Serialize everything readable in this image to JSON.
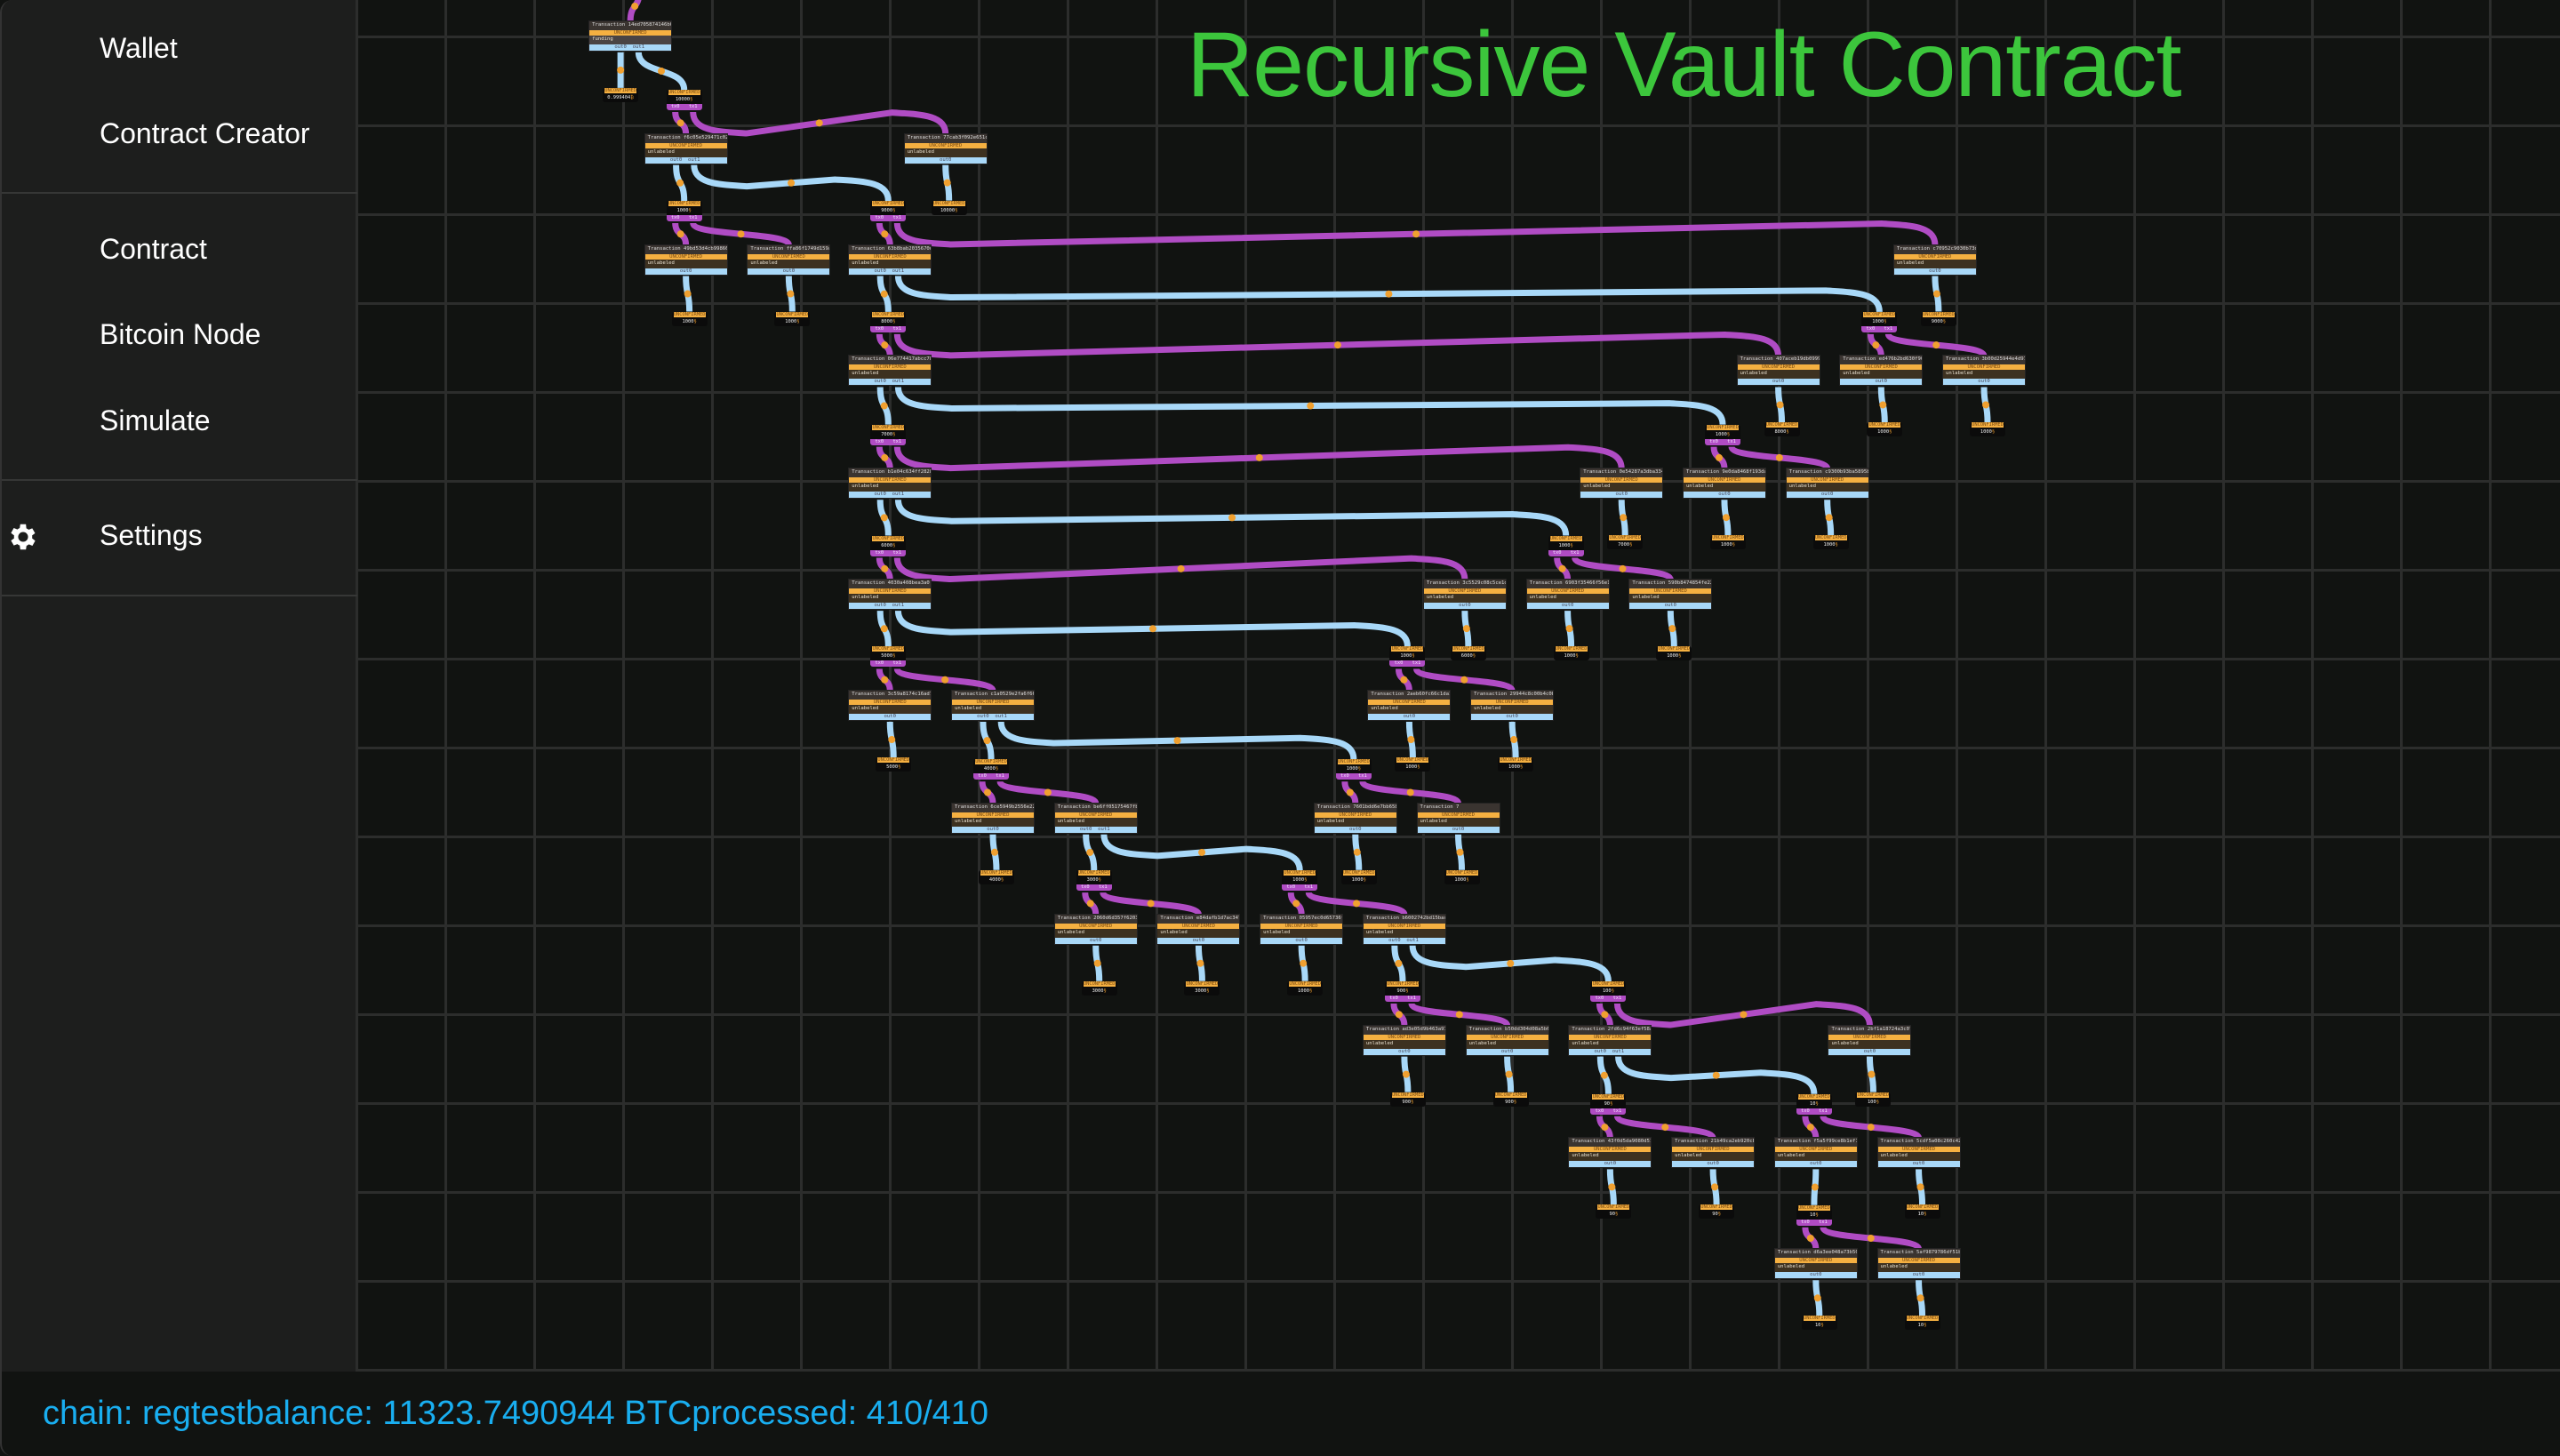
{
  "sidebar": {
    "items": [
      {
        "label": "Wallet"
      },
      {
        "label": "Contract Creator"
      },
      {
        "label": "Contract"
      },
      {
        "label": "Bitcoin Node"
      },
      {
        "label": "Simulate"
      },
      {
        "label": "Settings",
        "icon": "gear-icon"
      }
    ]
  },
  "canvas": {
    "title": "Recursive Vault Contract",
    "title_color": "#3cc63c",
    "tx_prefix": "Transaction",
    "status_text": "UNCONFIRMED",
    "colors": {
      "output_edge": "#a8d8f8",
      "spend_edge": "#b04cc4",
      "status": "#f5b041",
      "coin_marker": "#f0a030"
    },
    "transactions": [
      {
        "id": "14ed705874146b04",
        "label": "funding",
        "outputs": [
          {
            "name": "out0",
            "amount": "0.999404",
            "unit": "₿",
            "spenders": []
          },
          {
            "name": "out1",
            "amount": "10000",
            "unit": "§",
            "spenders": [
              1,
              2
            ]
          }
        ]
      },
      {
        "id": "f6c05e529471c029",
        "label": "unlabeled",
        "outputs": [
          {
            "name": "out0",
            "amount": "1000",
            "unit": "§",
            "spenders": [
              3,
              4
            ]
          },
          {
            "name": "out1",
            "amount": "9000",
            "unit": "§",
            "spenders": [
              5,
              6
            ]
          }
        ]
      },
      {
        "id": "77cab3f092e651cc",
        "label": "unlabeled",
        "outputs": [
          {
            "name": "out0",
            "amount": "10000",
            "unit": "§",
            "spenders": []
          }
        ]
      },
      {
        "id": "49bd53d4cb99866f",
        "label": "unlabeled",
        "outputs": [
          {
            "name": "out0",
            "amount": "1000",
            "unit": "§",
            "spenders": []
          }
        ]
      },
      {
        "id": "ffa86f1749d159aa",
        "label": "unlabeled",
        "outputs": [
          {
            "name": "out0",
            "amount": "1000",
            "unit": "§",
            "spenders": []
          }
        ]
      },
      {
        "id": "63b8bab2035670d7",
        "label": "unlabeled",
        "outputs": [
          {
            "name": "out0",
            "amount": "8000",
            "unit": "§",
            "spenders": [
              7,
              8
            ]
          },
          {
            "name": "out1",
            "amount": "1000",
            "unit": "§",
            "spenders": [
              9,
              10
            ]
          }
        ]
      },
      {
        "id": "c70952c9030b73d5",
        "label": "unlabeled",
        "outputs": [
          {
            "name": "out0",
            "amount": "9000",
            "unit": "§",
            "spenders": []
          }
        ]
      },
      {
        "id": "06e774417abcc78b",
        "label": "unlabeled",
        "outputs": [
          {
            "name": "out0",
            "amount": "7000",
            "unit": "§",
            "spenders": [
              11,
              12
            ]
          },
          {
            "name": "out1",
            "amount": "1000",
            "unit": "§",
            "spenders": [
              13,
              14
            ]
          }
        ]
      },
      {
        "id": "407aceb19db09995",
        "label": "unlabeled",
        "outputs": [
          {
            "name": "out0",
            "amount": "8000",
            "unit": "§",
            "spenders": []
          }
        ]
      },
      {
        "id": "ed476b2bd630f904",
        "label": "unlabeled",
        "outputs": [
          {
            "name": "out0",
            "amount": "1000",
            "unit": "§",
            "spenders": []
          }
        ]
      },
      {
        "id": "3b00d25944e4d977",
        "label": "unlabeled",
        "outputs": [
          {
            "name": "out0",
            "amount": "1000",
            "unit": "§",
            "spenders": []
          }
        ]
      },
      {
        "id": "b1e04c634ff28287",
        "label": "unlabeled",
        "outputs": [
          {
            "name": "out0",
            "amount": "6000",
            "unit": "§",
            "spenders": [
              15,
              16
            ]
          },
          {
            "name": "out1",
            "amount": "1000",
            "unit": "§",
            "spenders": [
              17,
              18
            ]
          }
        ]
      },
      {
        "id": "0e54287a3dba3347",
        "label": "unlabeled",
        "outputs": [
          {
            "name": "out0",
            "amount": "7000",
            "unit": "§",
            "spenders": []
          }
        ]
      },
      {
        "id": "9e0da8468f193da9",
        "label": "unlabeled",
        "outputs": [
          {
            "name": "out0",
            "amount": "1000",
            "unit": "§",
            "spenders": []
          }
        ]
      },
      {
        "id": "c9300b93ba5895b7",
        "label": "unlabeled",
        "outputs": [
          {
            "name": "out0",
            "amount": "1000",
            "unit": "§",
            "spenders": []
          }
        ]
      },
      {
        "id": "4030a408bea3a0",
        "label": "unlabeled",
        "outputs": [
          {
            "name": "out0",
            "amount": "5000",
            "unit": "§",
            "spenders": [
              19,
              20
            ]
          },
          {
            "name": "out1",
            "amount": "1000",
            "unit": "§",
            "spenders": [
              21,
              22
            ]
          }
        ]
      },
      {
        "id": "3c5529c08c5ce1d8",
        "label": "unlabeled",
        "outputs": [
          {
            "name": "out0",
            "amount": "6000",
            "unit": "§",
            "spenders": []
          }
        ]
      },
      {
        "id": "6903f35466f56e1c",
        "label": "unlabeled",
        "outputs": [
          {
            "name": "out0",
            "amount": "1000",
            "unit": "§",
            "spenders": []
          }
        ]
      },
      {
        "id": "590b8474854fe22b",
        "label": "unlabeled",
        "outputs": [
          {
            "name": "out0",
            "amount": "1000",
            "unit": "§",
            "spenders": []
          }
        ]
      },
      {
        "id": "3c59a8174c16ad71",
        "label": "unlabeled",
        "outputs": [
          {
            "name": "out0",
            "amount": "5000",
            "unit": "§",
            "spenders": []
          }
        ]
      },
      {
        "id": "c1a0529e2fa6f66d",
        "label": "unlabeled",
        "outputs": [
          {
            "name": "out0",
            "amount": "4000",
            "unit": "§",
            "spenders": [
              23,
              24
            ]
          },
          {
            "name": "out1",
            "amount": "1000",
            "unit": "§",
            "spenders": [
              25,
              26
            ]
          }
        ]
      },
      {
        "id": "2aeb60fc66c1da18",
        "label": "unlabeled",
        "outputs": [
          {
            "name": "out0",
            "amount": "1000",
            "unit": "§",
            "spenders": []
          }
        ]
      },
      {
        "id": "29944c8c00b4c0b7",
        "label": "unlabeled",
        "outputs": [
          {
            "name": "out0",
            "amount": "1000",
            "unit": "§",
            "spenders": []
          }
        ]
      },
      {
        "id": "6ce5949b2556e220",
        "label": "unlabeled",
        "outputs": [
          {
            "name": "out0",
            "amount": "4000",
            "unit": "§",
            "spenders": []
          }
        ]
      },
      {
        "id": "be6ff05175467fb0",
        "label": "unlabeled",
        "outputs": [
          {
            "name": "out0",
            "amount": "3000",
            "unit": "§",
            "spenders": [
              27,
              28
            ]
          },
          {
            "name": "out1",
            "amount": "1000",
            "unit": "§",
            "spenders": [
              29,
              30
            ]
          }
        ]
      },
      {
        "id": "7601bdd6e7bb6589",
        "label": "unlabeled",
        "outputs": [
          {
            "name": "out0",
            "amount": "1000",
            "unit": "§",
            "spenders": []
          }
        ]
      },
      {
        "id": "7",
        "label": "unlabeled",
        "outputs": [
          {
            "name": "out0",
            "amount": "1000",
            "unit": "§",
            "spenders": []
          }
        ]
      },
      {
        "id": "2060d6d357f62030",
        "label": "unlabeled",
        "outputs": [
          {
            "name": "out0",
            "amount": "3000",
            "unit": "§",
            "spenders": []
          }
        ]
      },
      {
        "id": "e84dafb1d7ac3471",
        "label": "unlabeled",
        "outputs": [
          {
            "name": "out0",
            "amount": "3000",
            "unit": "§",
            "spenders": []
          }
        ]
      },
      {
        "id": "05957ec0d65736f3",
        "label": "unlabeled",
        "outputs": [
          {
            "name": "out0",
            "amount": "1000",
            "unit": "§",
            "spenders": []
          }
        ]
      },
      {
        "id": "b6002742bd15bac",
        "label": "unlabeled",
        "outputs": [
          {
            "name": "out0",
            "amount": "900",
            "unit": "§",
            "spenders": [
              31,
              32
            ]
          },
          {
            "name": "out1",
            "amount": "100",
            "unit": "§",
            "spenders": [
              33,
              34
            ]
          }
        ]
      },
      {
        "id": "ad3e05d9b463a979",
        "label": "unlabeled",
        "outputs": [
          {
            "name": "out0",
            "amount": "900",
            "unit": "§",
            "spenders": []
          }
        ]
      },
      {
        "id": "b50dd304d08a5b6d",
        "label": "unlabeled",
        "outputs": [
          {
            "name": "out0",
            "amount": "900",
            "unit": "§",
            "spenders": []
          }
        ]
      },
      {
        "id": "2fd6c94f63ef58a5",
        "label": "unlabeled",
        "outputs": [
          {
            "name": "out0",
            "amount": "90",
            "unit": "§",
            "spenders": [
              35,
              36
            ]
          },
          {
            "name": "out1",
            "amount": "10",
            "unit": "§",
            "spenders": [
              37,
              38
            ]
          }
        ]
      },
      {
        "id": "2bf1a18724a3c077",
        "label": "unlabeled",
        "outputs": [
          {
            "name": "out0",
            "amount": "100",
            "unit": "§",
            "spenders": []
          }
        ]
      },
      {
        "id": "43f0d5da9080d518",
        "label": "unlabeled",
        "outputs": [
          {
            "name": "out0",
            "amount": "90",
            "unit": "§",
            "spenders": []
          }
        ]
      },
      {
        "id": "21b49ca2eb920cbd",
        "label": "unlabeled",
        "outputs": [
          {
            "name": "out0",
            "amount": "90",
            "unit": "§",
            "spenders": []
          }
        ]
      },
      {
        "id": "f5a5f99ce8b1ef12",
        "label": "unlabeled",
        "outputs": [
          {
            "name": "out0",
            "amount": "10",
            "unit": "§",
            "spenders": [
              39,
              40
            ]
          }
        ]
      },
      {
        "id": "5cdf5a08c260c423",
        "label": "unlabeled",
        "outputs": [
          {
            "name": "out0",
            "amount": "10",
            "unit": "§",
            "spenders": []
          }
        ]
      },
      {
        "id": "d6a3ee048a73b50d",
        "label": "unlabeled",
        "outputs": [
          {
            "name": "out0",
            "amount": "10",
            "unit": "§",
            "spenders": []
          }
        ]
      },
      {
        "id": "5af9879786df51b4",
        "label": "unlabeled",
        "outputs": [
          {
            "name": "out0",
            "amount": "10",
            "unit": "§",
            "spenders": []
          }
        ]
      }
    ]
  },
  "status_bar": {
    "text": "chain: regtestbalance: 11323.7490944 BTCprocessed: 410/410",
    "color": "#19aef0"
  }
}
